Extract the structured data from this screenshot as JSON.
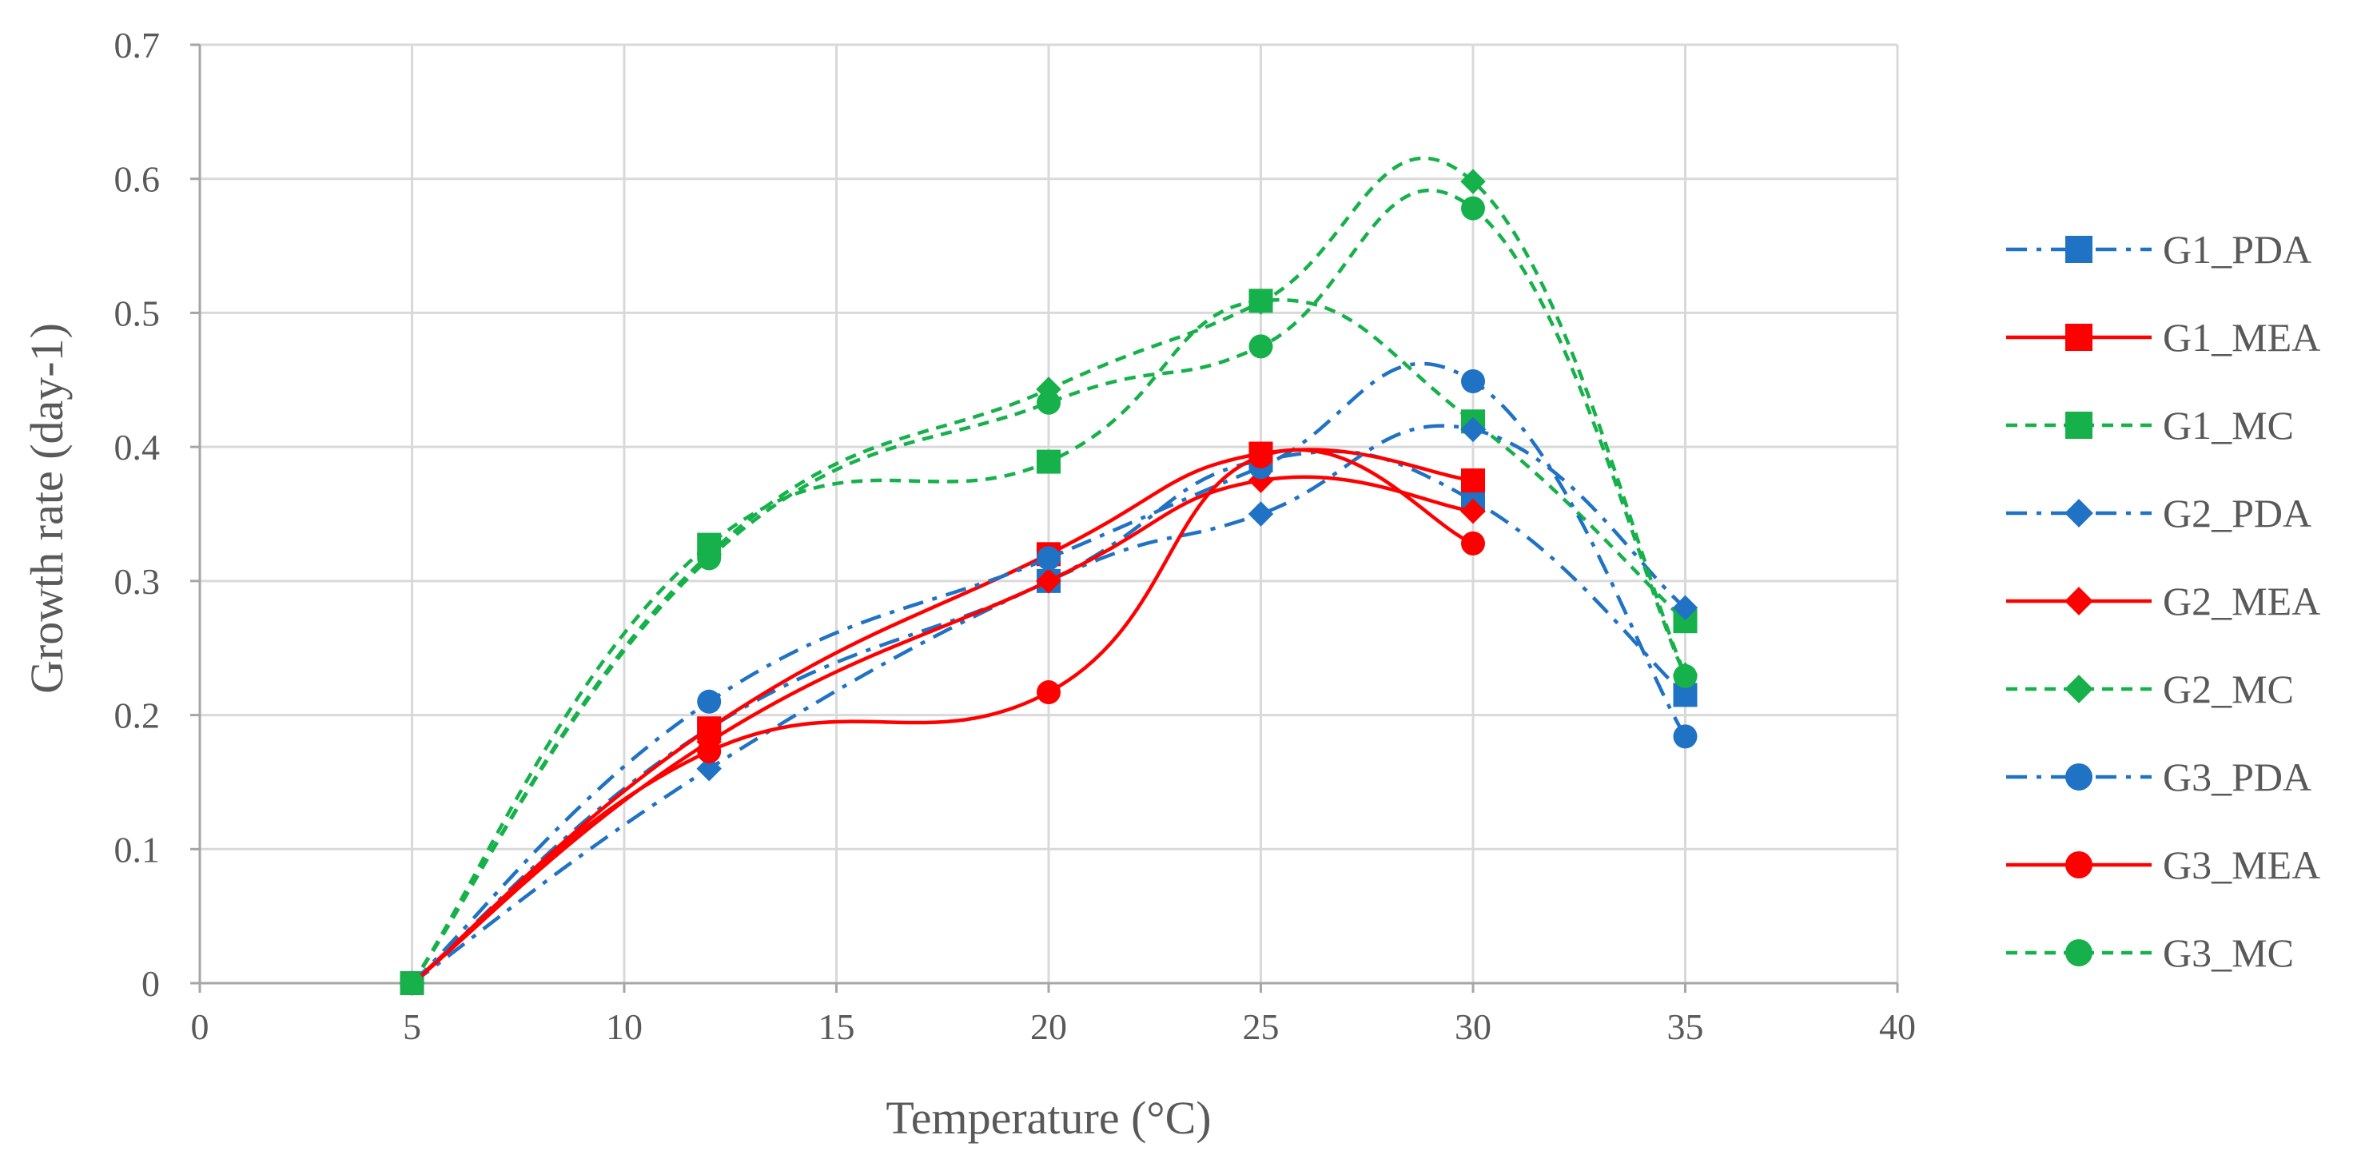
{
  "chart_data": {
    "type": "line",
    "title": "",
    "xlabel": "Temperature (°C)",
    "ylabel": "Growth rate (day-1)",
    "xlim": [
      0,
      40
    ],
    "ylim": [
      0,
      0.7
    ],
    "xticks": [
      0,
      5,
      10,
      15,
      20,
      25,
      30,
      35,
      40
    ],
    "xtick_labels": [
      "0",
      "5",
      "10",
      "15",
      "20",
      "25",
      "30",
      "35",
      "40"
    ],
    "yticks": [
      0,
      0.1,
      0.2,
      0.3,
      0.4,
      0.5,
      0.6,
      0.7
    ],
    "ytick_labels": [
      "0",
      "0.1",
      "0.2",
      "0.3",
      "0.4",
      "0.5",
      "0.6",
      "0.7"
    ],
    "grid": true,
    "legend_position": "right",
    "series": [
      {
        "name": "G1_PDA",
        "color": "#1F72C4",
        "dash": "dashdot",
        "marker": "square",
        "x": [
          5,
          12,
          20,
          25,
          30,
          35
        ],
        "y": [
          0,
          0.19,
          0.3,
          0.39,
          0.36,
          0.215
        ]
      },
      {
        "name": "G1_MEA",
        "color": "#FF0000",
        "dash": "solid",
        "marker": "square",
        "x": [
          5,
          12,
          20,
          25,
          30
        ],
        "y": [
          0,
          0.19,
          0.32,
          0.395,
          0.375
        ]
      },
      {
        "name": "G1_MC",
        "color": "#16B14A",
        "dash": "dash",
        "marker": "square",
        "x": [
          5,
          12,
          20,
          25,
          30,
          35
        ],
        "y": [
          0,
          0.327,
          0.389,
          0.509,
          0.419,
          0.27
        ]
      },
      {
        "name": "G2_PDA",
        "color": "#1F72C4",
        "dash": "dashdot",
        "marker": "diamond",
        "x": [
          5,
          12,
          20,
          25,
          30,
          35
        ],
        "y": [
          0,
          0.16,
          0.3,
          0.35,
          0.413,
          0.28
        ]
      },
      {
        "name": "G2_MEA",
        "color": "#FF0000",
        "dash": "solid",
        "marker": "diamond",
        "x": [
          5,
          12,
          20,
          25,
          30
        ],
        "y": [
          0,
          0.18,
          0.3,
          0.375,
          0.352
        ]
      },
      {
        "name": "G2_MC",
        "color": "#16B14A",
        "dash": "dash",
        "marker": "diamond",
        "x": [
          5,
          12,
          20,
          25,
          30,
          35
        ],
        "y": [
          0,
          0.32,
          0.443,
          0.508,
          0.598,
          0.23
        ]
      },
      {
        "name": "G3_PDA",
        "color": "#1F72C4",
        "dash": "dashdot",
        "marker": "circle",
        "x": [
          5,
          12,
          20,
          25,
          30,
          35
        ],
        "y": [
          0,
          0.21,
          0.317,
          0.385,
          0.449,
          0.184
        ]
      },
      {
        "name": "G3_MEA",
        "color": "#FF0000",
        "dash": "solid",
        "marker": "circle",
        "x": [
          5,
          12,
          20,
          25,
          30
        ],
        "y": [
          0,
          0.173,
          0.217,
          0.393,
          0.328
        ]
      },
      {
        "name": "G3_MC",
        "color": "#16B14A",
        "dash": "dash",
        "marker": "circle",
        "x": [
          5,
          12,
          20,
          25,
          30,
          35
        ],
        "y": [
          0,
          0.317,
          0.433,
          0.475,
          0.578,
          0.229
        ]
      }
    ]
  }
}
